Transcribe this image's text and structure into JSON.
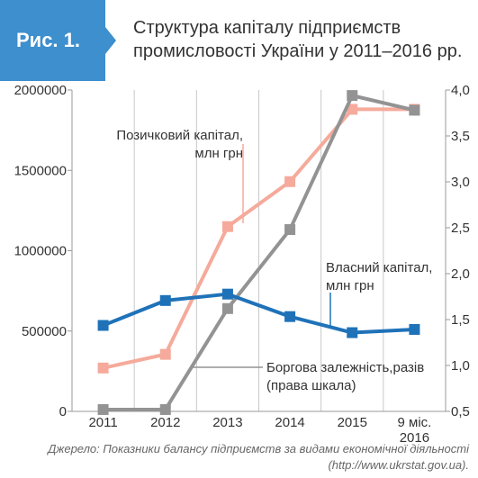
{
  "figure": {
    "label": "Рис. 1.",
    "title_line1": "Структура капіталу підприємств",
    "title_line2": "промисловості України у 2011–2016 рр."
  },
  "colors": {
    "badge": "#3d8fce",
    "borrowed": "#f5aa9b",
    "equity": "#1f72b8",
    "debt_ratio": "#939393",
    "grid": "#c8c8c8"
  },
  "chart_data": {
    "type": "line",
    "categories": [
      "2011",
      "2012",
      "2013",
      "2014",
      "2015",
      "9 міс. 2016"
    ],
    "category_lines": [
      [
        "2011"
      ],
      [
        "2012"
      ],
      [
        "2013"
      ],
      [
        "2014"
      ],
      [
        "2015"
      ],
      [
        "9 міс.",
        "2016"
      ]
    ],
    "left_axis": {
      "ylim": [
        0,
        2000000
      ],
      "ticks": [
        0,
        500000,
        1000000,
        1500000,
        2000000
      ],
      "tick_labels": [
        "0",
        "500000",
        "1000000",
        "1500000",
        "2000000"
      ]
    },
    "right_axis": {
      "ylim": [
        0.5,
        4.0
      ],
      "ticks": [
        0.5,
        1.0,
        1.5,
        2.0,
        2.5,
        3.0,
        3.5,
        4.0
      ],
      "tick_labels": [
        "0,5",
        "1,0",
        "1,5",
        "2,0",
        "2,5",
        "3,0",
        "3,5",
        "4,0"
      ]
    },
    "grid": "vertical",
    "series": [
      {
        "key": "borrowed",
        "name_lines": [
          "Позичковий капітал,",
          "млн грн"
        ],
        "axis": "left",
        "marker": "square",
        "color": "#f5aa9b",
        "values": [
          270000,
          355000,
          1150000,
          1430000,
          1880000,
          1880000
        ]
      },
      {
        "key": "equity",
        "name_lines": [
          "Власний капітал,",
          "млн грн"
        ],
        "axis": "left",
        "marker": "square",
        "color": "#1f72b8",
        "values": [
          535000,
          690000,
          730000,
          590000,
          490000,
          510000
        ]
      },
      {
        "key": "debt_ratio",
        "name_lines": [
          "Боргова залежність,разів",
          "(права шкала)"
        ],
        "axis": "right",
        "marker": "square",
        "color": "#939393",
        "values": [
          0.52,
          0.52,
          1.62,
          2.48,
          3.94,
          3.78
        ]
      }
    ]
  },
  "source": {
    "line1": "Джерело: Показники балансу підприємств за видами економічної діяльності",
    "line2": "(http://www.ukrstat.gov.ua)."
  }
}
